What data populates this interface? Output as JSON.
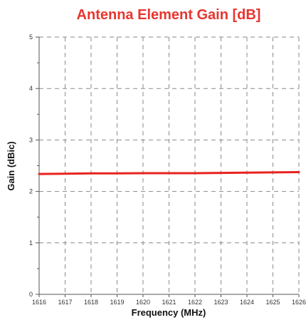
{
  "chart_data": {
    "type": "line",
    "title": "Antenna Element Gain [dB]",
    "xlabel": "Frequency (MHz)",
    "ylabel": "Gain (dBic)",
    "xlim": [
      1616,
      1626
    ],
    "ylim": [
      0,
      5
    ],
    "x_ticks": [
      "1616",
      "1617",
      "1618",
      "1619",
      "1620",
      "1621",
      "1622",
      "1623",
      "1624",
      "1625",
      "1626"
    ],
    "y_ticks": [
      "0",
      "1",
      "2",
      "3",
      "4",
      "5"
    ],
    "grid": true,
    "series": [
      {
        "color": "#e8231f",
        "x": [
          1616,
          1617,
          1618,
          1619,
          1620,
          1621,
          1622,
          1623,
          1624,
          1625,
          1626
        ],
        "y": [
          2.34,
          2.345,
          2.35,
          2.35,
          2.355,
          2.355,
          2.355,
          2.36,
          2.365,
          2.37,
          2.375
        ]
      }
    ]
  }
}
